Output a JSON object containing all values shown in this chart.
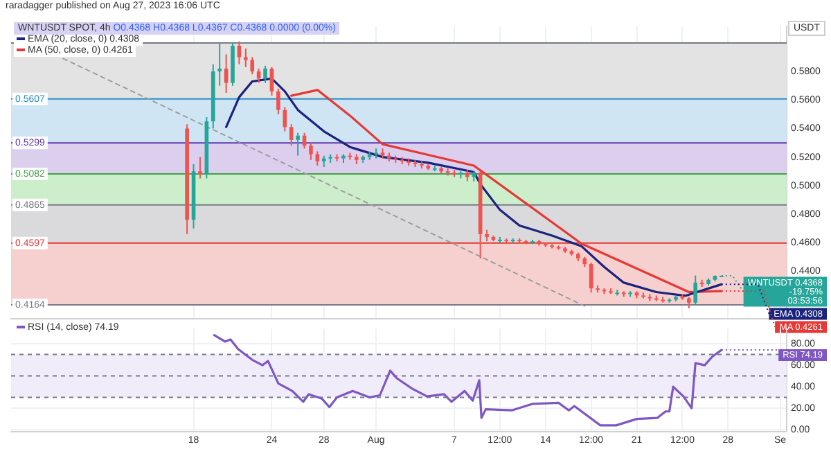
{
  "chart_data": [
    {
      "type": "candlestick",
      "title": "WNTUSDT SPOT, 4h",
      "subtitle": "O0.4368 H0.4368 L0.4367 C0.4368 0.0000 (0.00%)",
      "ylabel": "USDT",
      "annotations": [
        "raradagger published on Aug 27, 2023 16:06 UTC",
        {
          "text": "WNTUSDT 0.4368\n-19.75%\n03:53:56",
          "x": "2023-08-27T12:00",
          "y": 0.4368
        },
        {
          "text": "EMA 0.4308",
          "x": "2023-08-27T12:00",
          "y": 0.4308
        },
        {
          "text": "MA 0.4261",
          "x": "2023-08-27T12:00",
          "y": 0.4261
        }
      ],
      "x": [
        "2023-07-17T12:00",
        "2023-07-18",
        "2023-07-18T12:00",
        "2023-07-19",
        "2023-07-19T12:00",
        "2023-07-20",
        "2023-07-20T12:00",
        "2023-07-21",
        "2023-07-21T12:00",
        "2023-07-22",
        "2023-07-22T12:00",
        "2023-07-23",
        "2023-07-23T12:00",
        "2023-07-24",
        "2023-07-24T12:00",
        "2023-07-25",
        "2023-07-25T12:00",
        "2023-07-26",
        "2023-07-26T12:00",
        "2023-07-27",
        "2023-07-27T12:00",
        "2023-07-28",
        "2023-07-28T12:00",
        "2023-07-29",
        "2023-07-29T12:00",
        "2023-07-30",
        "2023-07-30T12:00",
        "2023-07-31",
        "2023-07-31T12:00",
        "2023-08-01",
        "2023-08-01T12:00",
        "2023-08-02",
        "2023-08-02T12:00",
        "2023-08-03",
        "2023-08-03T12:00",
        "2023-08-04",
        "2023-08-04T12:00",
        "2023-08-05",
        "2023-08-05T12:00",
        "2023-08-06",
        "2023-08-06T12:00",
        "2023-08-07",
        "2023-08-07T12:00",
        "2023-08-08",
        "2023-08-08T12:00",
        "2023-08-09",
        "2023-08-09T12:00",
        "2023-08-10",
        "2023-08-10T12:00",
        "2023-08-11",
        "2023-08-11T12:00",
        "2023-08-12",
        "2023-08-12T12:00",
        "2023-08-13",
        "2023-08-13T12:00",
        "2023-08-14",
        "2023-08-14T12:00",
        "2023-08-15",
        "2023-08-15T12:00",
        "2023-08-16",
        "2023-08-16T12:00",
        "2023-08-17",
        "2023-08-17T12:00",
        "2023-08-18",
        "2023-08-18T12:00",
        "2023-08-19",
        "2023-08-19T12:00",
        "2023-08-20",
        "2023-08-20T12:00",
        "2023-08-21",
        "2023-08-21T12:00",
        "2023-08-22",
        "2023-08-22T12:00",
        "2023-08-23",
        "2023-08-23T12:00",
        "2023-08-24",
        "2023-08-24T12:00",
        "2023-08-25",
        "2023-08-25T12:00",
        "2023-08-26",
        "2023-08-26T12:00",
        "2023-08-27",
        "2023-08-27T12:00"
      ],
      "ohlc": [
        [
          0.54,
          0.543,
          0.466,
          0.476
        ],
        [
          0.476,
          0.515,
          0.47,
          0.51
        ],
        [
          0.51,
          0.52,
          0.505,
          0.508
        ],
        [
          0.508,
          0.548,
          0.505,
          0.545
        ],
        [
          0.545,
          0.585,
          0.54,
          0.58
        ],
        [
          0.58,
          0.6,
          0.57,
          0.582
        ],
        [
          0.582,
          0.592,
          0.565,
          0.572
        ],
        [
          0.572,
          0.6,
          0.57,
          0.598
        ],
        [
          0.598,
          0.601,
          0.585,
          0.59
        ],
        [
          0.59,
          0.596,
          0.583,
          0.588
        ],
        [
          0.588,
          0.59,
          0.578,
          0.58
        ],
        [
          0.58,
          0.582,
          0.572,
          0.575
        ],
        [
          0.575,
          0.584,
          0.572,
          0.582
        ],
        [
          0.582,
          0.583,
          0.563,
          0.566
        ],
        [
          0.566,
          0.568,
          0.55,
          0.553
        ],
        [
          0.553,
          0.555,
          0.538,
          0.541
        ],
        [
          0.541,
          0.543,
          0.528,
          0.532
        ],
        [
          0.532,
          0.537,
          0.521,
          0.535
        ],
        [
          0.535,
          0.537,
          0.526,
          0.528
        ],
        [
          0.528,
          0.53,
          0.518,
          0.522
        ],
        [
          0.522,
          0.524,
          0.514,
          0.517
        ],
        [
          0.517,
          0.521,
          0.513,
          0.519
        ],
        [
          0.519,
          0.522,
          0.516,
          0.52
        ],
        [
          0.52,
          0.522,
          0.517,
          0.519
        ],
        [
          0.519,
          0.522,
          0.516,
          0.521
        ],
        [
          0.521,
          0.523,
          0.518,
          0.52
        ],
        [
          0.52,
          0.522,
          0.515,
          0.518
        ],
        [
          0.518,
          0.521,
          0.516,
          0.52
        ],
        [
          0.52,
          0.524,
          0.518,
          0.522
        ],
        [
          0.522,
          0.526,
          0.519,
          0.523
        ],
        [
          0.523,
          0.526,
          0.519,
          0.521
        ],
        [
          0.521,
          0.523,
          0.517,
          0.519
        ],
        [
          0.519,
          0.521,
          0.516,
          0.518
        ],
        [
          0.518,
          0.52,
          0.515,
          0.517
        ],
        [
          0.517,
          0.519,
          0.514,
          0.516
        ],
        [
          0.516,
          0.518,
          0.513,
          0.515
        ],
        [
          0.515,
          0.517,
          0.512,
          0.514
        ],
        [
          0.514,
          0.515,
          0.511,
          0.512
        ],
        [
          0.512,
          0.514,
          0.51,
          0.512
        ],
        [
          0.512,
          0.513,
          0.508,
          0.51
        ],
        [
          0.51,
          0.512,
          0.507,
          0.509
        ],
        [
          0.509,
          0.511,
          0.506,
          0.508
        ],
        [
          0.508,
          0.51,
          0.505,
          0.509
        ],
        [
          0.509,
          0.511,
          0.503,
          0.506
        ],
        [
          0.506,
          0.51,
          0.503,
          0.509
        ],
        [
          0.509,
          0.51,
          0.449,
          0.466
        ],
        [
          0.466,
          0.469,
          0.461,
          0.464
        ],
        [
          0.464,
          0.465,
          0.461,
          0.462
        ],
        [
          0.462,
          0.464,
          0.46,
          0.462
        ],
        [
          0.462,
          0.463,
          0.46,
          0.461
        ],
        [
          0.461,
          0.463,
          0.46,
          0.462
        ],
        [
          0.462,
          0.463,
          0.46,
          0.461
        ],
        [
          0.461,
          0.462,
          0.459,
          0.46
        ],
        [
          0.46,
          0.462,
          0.459,
          0.461
        ],
        [
          0.461,
          0.462,
          0.458,
          0.459
        ],
        [
          0.459,
          0.46,
          0.457,
          0.458
        ],
        [
          0.458,
          0.459,
          0.456,
          0.457
        ],
        [
          0.457,
          0.458,
          0.455,
          0.456
        ],
        [
          0.456,
          0.457,
          0.453,
          0.454
        ],
        [
          0.454,
          0.455,
          0.451,
          0.452
        ],
        [
          0.452,
          0.453,
          0.447,
          0.449
        ],
        [
          0.449,
          0.45,
          0.443,
          0.445
        ],
        [
          0.445,
          0.446,
          0.425,
          0.428
        ],
        [
          0.428,
          0.43,
          0.425,
          0.427
        ],
        [
          0.427,
          0.428,
          0.424,
          0.426
        ],
        [
          0.426,
          0.428,
          0.424,
          0.425
        ],
        [
          0.425,
          0.427,
          0.423,
          0.425
        ],
        [
          0.425,
          0.426,
          0.422,
          0.424
        ],
        [
          0.424,
          0.426,
          0.422,
          0.425
        ],
        [
          0.425,
          0.426,
          0.421,
          0.423
        ],
        [
          0.423,
          0.425,
          0.421,
          0.422
        ],
        [
          0.422,
          0.424,
          0.419,
          0.421
        ],
        [
          0.421,
          0.423,
          0.419,
          0.42
        ],
        [
          0.42,
          0.422,
          0.418,
          0.419
        ],
        [
          0.419,
          0.421,
          0.418,
          0.42
        ],
        [
          0.42,
          0.423,
          0.419,
          0.422
        ],
        [
          0.422,
          0.424,
          0.42,
          0.421
        ],
        [
          0.421,
          0.422,
          0.414,
          0.418
        ],
        [
          0.418,
          0.437,
          0.417,
          0.432
        ],
        [
          0.432,
          0.434,
          0.429,
          0.431
        ],
        [
          0.431,
          0.435,
          0.43,
          0.434
        ],
        [
          0.434,
          0.437,
          0.433,
          0.4368
        ],
        [
          0.4368,
          0.4368,
          0.4367,
          0.4368
        ]
      ],
      "series": [
        {
          "name": "EMA (20, close, 0) 0.4308",
          "type": "line",
          "color": "#1a237e",
          "x": [
            "2023-07-20T12:00",
            "2023-07-21T12:00",
            "2023-07-22T12:00",
            "2023-07-24",
            "2023-07-25",
            "2023-07-26",
            "2023-07-28",
            "2023-07-30",
            "2023-08-01T12:00",
            "2023-08-05",
            "2023-08-08T12:00",
            "2023-08-09",
            "2023-08-10T12:00",
            "2023-08-12",
            "2023-08-14T12:00",
            "2023-08-16T18:00",
            "2023-08-18T12:00",
            "2023-08-20",
            "2023-08-22T12:00",
            "2023-08-24T18:00",
            "2023-08-26",
            "2023-08-27T12:00"
          ],
          "values": [
            0.541,
            0.562,
            0.573,
            0.575,
            0.566,
            0.553,
            0.538,
            0.527,
            0.52,
            0.516,
            0.5095,
            0.501,
            0.483,
            0.472,
            0.465,
            0.4576,
            0.443,
            0.432,
            0.4254,
            0.4228,
            0.4265,
            0.4308
          ]
        },
        {
          "name": "MA (50, close, 0) 0.4261",
          "type": "line",
          "color": "#e53935",
          "x": [
            "2023-07-25T12:00",
            "2023-07-27T12:00",
            "2023-07-30",
            "2023-08-01T12:00",
            "2023-08-05",
            "2023-08-08T12:00",
            "2023-08-16T18:00",
            "2023-08-25",
            "2023-08-27T12:00"
          ],
          "values": [
            0.563,
            0.567,
            0.549,
            0.529,
            0.5215,
            0.514,
            0.4594,
            0.4254,
            0.4261
          ]
        },
        {
          "type": "line",
          "color": "#9e9e9e",
          "line_style": "dashed",
          "x": [
            "2023-07-08",
            "2023-08-17"
          ],
          "values": [
            0.589,
            0.4156
          ]
        }
      ],
      "bands": [
        {
          "axis": "y",
          "from": 0.5607,
          "to": 0.6,
          "color": "#e3e3e3"
        },
        {
          "axis": "y",
          "from": 0.5299,
          "to": 0.5607,
          "color": "#cfe5f3"
        },
        {
          "axis": "y",
          "from": 0.5082,
          "to": 0.5299,
          "color": "#dccfee"
        },
        {
          "axis": "y",
          "from": 0.4865,
          "to": 0.5082,
          "color": "#cdeecb"
        },
        {
          "axis": "y",
          "from": 0.4597,
          "to": 0.4865,
          "color": "#dadadd"
        },
        {
          "axis": "y",
          "from": 0.4164,
          "to": 0.4597,
          "color": "#f6cfcf"
        }
      ],
      "ref_lines": [
        {
          "axis": "y",
          "value": 0.6,
          "label": null,
          "color": "#787b86"
        },
        {
          "axis": "y",
          "value": 0.5607,
          "label": "0.5607",
          "color": "#2a8fc7"
        },
        {
          "axis": "y",
          "value": 0.5299,
          "label": "0.5299",
          "color": "#5e35b1"
        },
        {
          "axis": "y",
          "value": 0.5082,
          "label": "0.5082",
          "color": "#43a047"
        },
        {
          "axis": "y",
          "value": 0.4865,
          "label": "0.4865",
          "color": "#787b86"
        },
        {
          "axis": "y",
          "value": 0.4597,
          "label": "0.4597",
          "color": "#e53935"
        },
        {
          "axis": "y",
          "value": 0.4164,
          "label": "0.4164",
          "color": "#787b86"
        }
      ],
      "xlim": [
        "2023-07-04",
        "2023-09-01T12:00"
      ],
      "xticks": [
        {
          "value": "2023-07-18",
          "label": null
        },
        {
          "value": "2023-07-24",
          "label": null
        },
        {
          "value": "2023-07-28",
          "label": null
        },
        {
          "value": "2023-08-01",
          "label": null
        },
        {
          "value": "2023-08-07",
          "label": null
        },
        {
          "value": "2023-08-10T12:00",
          "label": null
        },
        {
          "value": "2023-08-14",
          "label": null
        },
        {
          "value": "2023-08-17T12:00",
          "label": null
        },
        {
          "value": "2023-08-21",
          "label": null
        },
        {
          "value": "2023-08-24T12:00",
          "label": null
        },
        {
          "value": "2023-08-28",
          "label": null
        },
        {
          "value": "2023-09-01",
          "label": null
        }
      ],
      "ylim": [
        0.4067,
        0.6114
      ],
      "yticks": [
        {
          "value": 0.44,
          "label": "0.4400"
        },
        {
          "value": 0.46,
          "label": "0.4600"
        },
        {
          "value": 0.48,
          "label": "0.4800"
        },
        {
          "value": 0.5,
          "label": "0.5000"
        },
        {
          "value": 0.52,
          "label": "0.5200"
        },
        {
          "value": 0.54,
          "label": "0.5400"
        },
        {
          "value": 0.56,
          "label": "0.5600"
        },
        {
          "value": 0.58,
          "label": "0.5800"
        }
      ],
      "tick_labels": "y",
      "grid": true,
      "legend": "top left"
    },
    {
      "type": "line",
      "annotations": [
        {
          "text": "RSI 74.19",
          "x": "2023-08-27T12:00",
          "y": 74.19
        }
      ],
      "series": [
        {
          "name": "RSI (14, close) 74.19",
          "color": "#7e57c2",
          "x": [
            "2023-07-19T14:00",
            "2023-07-20T10:00",
            "2023-07-20T20:00",
            "2023-07-21T10:00",
            "2023-07-22T12:00",
            "2023-07-23T07:00",
            "2023-07-23T17:00",
            "2023-07-24T12:00",
            "2023-07-25T14:00",
            "2023-07-26T10:00",
            "2023-07-26T20:00",
            "2023-07-27T20:00",
            "2023-07-28T10:00",
            "2023-07-29",
            "2023-07-30T05:00",
            "2023-07-31T12:00",
            "2023-08-01T07:00",
            "2023-08-02T02:00",
            "2023-08-02T14:00",
            "2023-08-03T19:00",
            "2023-08-04T22:00",
            "2023-08-06T05:00",
            "2023-08-06T19:00",
            "2023-08-07T19:00",
            "2023-08-08T10:00",
            "2023-08-08T22:00",
            "2023-08-09T02:00",
            "2023-08-09T10:00",
            "2023-08-11T10:00",
            "2023-08-13",
            "2023-08-15",
            "2023-08-15T19:00",
            "2023-08-16T05:00",
            "2023-08-18T05:00",
            "2023-08-19T10:00",
            "2023-08-21",
            "2023-08-22T14:00",
            "2023-08-23T05:00",
            "2023-08-23T12:00",
            "2023-08-23T19:00",
            "2023-08-24T14:00",
            "2023-08-25T05:00",
            "2023-08-25T12:00",
            "2023-08-26T05:00",
            "2023-08-26T19:00",
            "2023-08-27T12:00"
          ],
          "values": [
            88,
            82,
            84,
            75,
            65,
            60,
            64,
            43,
            36,
            26,
            33,
            29,
            21,
            30,
            36,
            30,
            32,
            55,
            48,
            38,
            31,
            33,
            26,
            36,
            27,
            46,
            11,
            19,
            18,
            24,
            25,
            18,
            22,
            4,
            4,
            10,
            11,
            17,
            17,
            40,
            31,
            20,
            62,
            60,
            68,
            74.19
          ]
        }
      ],
      "bands": [
        {
          "axis": "y",
          "from": 30,
          "to": 70,
          "color": "#f1ecfa"
        }
      ],
      "ref_lines": [
        {
          "axis": "y",
          "value": 70,
          "label": null,
          "color": "#787b86",
          "line_style": "dashed"
        },
        {
          "axis": "y",
          "value": 50,
          "label": null,
          "color": "#787b86",
          "line_style": "dashed"
        },
        {
          "axis": "y",
          "value": 30,
          "label": null,
          "color": "#787b86",
          "line_style": "dashed"
        }
      ],
      "xlim": [
        "2023-07-04",
        "2023-09-01T12:00"
      ],
      "xticks": [
        {
          "value": "2023-07-18",
          "label": "18"
        },
        {
          "value": "2023-07-24",
          "label": "24"
        },
        {
          "value": "2023-07-28",
          "label": "28"
        },
        {
          "value": "2023-08-01",
          "label": "Aug"
        },
        {
          "value": "2023-08-07",
          "label": "7"
        },
        {
          "value": "2023-08-10T12:00",
          "label": "12:00"
        },
        {
          "value": "2023-08-14",
          "label": "14"
        },
        {
          "value": "2023-08-17T12:00",
          "label": "12:00"
        },
        {
          "value": "2023-08-21",
          "label": "21"
        },
        {
          "value": "2023-08-24T12:00",
          "label": "12:00"
        },
        {
          "value": "2023-08-28",
          "label": "28"
        },
        {
          "value": "2023-09-01",
          "label": "Se"
        }
      ],
      "ylim": [
        -2,
        94
      ],
      "yticks": [
        {
          "value": 0,
          "label": "0.00"
        },
        {
          "value": 20,
          "label": "20.00"
        },
        {
          "value": 40,
          "label": "40.00"
        },
        {
          "value": 60,
          "label": "60.00"
        },
        {
          "value": 80,
          "label": "80.00"
        }
      ],
      "grid": true,
      "legend": "top left"
    }
  ]
}
